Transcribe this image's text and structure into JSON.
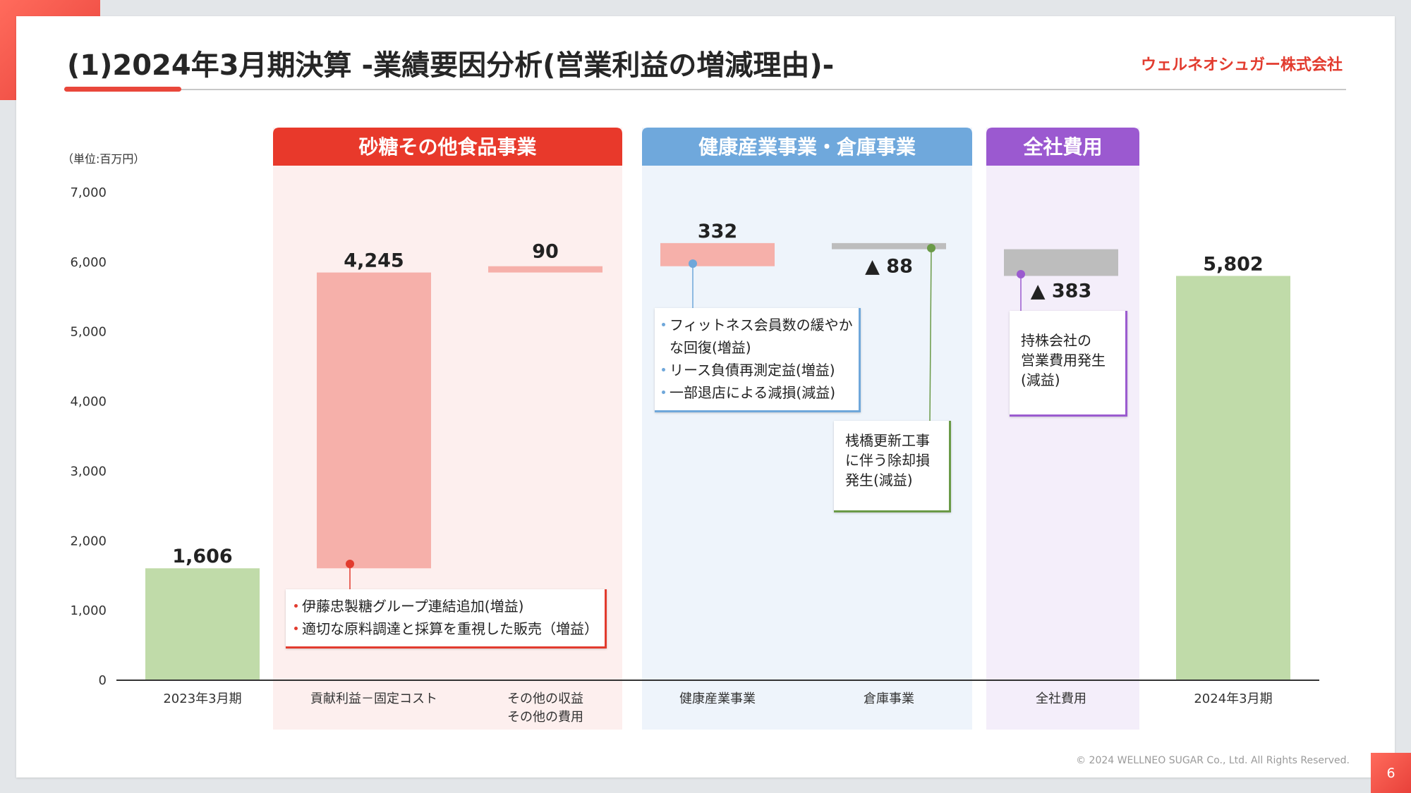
{
  "slide": {
    "title": "(1)2024年3月期決算 -業績要因分析(営業利益の増減理由)-",
    "company": "ウェルネオシュガー株式会社",
    "footer": "© 2024 WELLNEO SUGAR Co., Ltd. All Rights Reserved.",
    "page_number": "6"
  },
  "chart_data": {
    "type": "bar",
    "subtype": "waterfall",
    "unit_label": "（単位:百万円）",
    "ylim": [
      0,
      7000
    ],
    "y_ticks": [
      "7,000",
      "6,000",
      "5,000",
      "4,000",
      "3,000",
      "2,000",
      "1,000",
      "0"
    ],
    "groups": [
      {
        "label": "砂糖その他食品事業",
        "color": "#e8392b",
        "bg": "#fdefee",
        "span": [
          1,
          2
        ]
      },
      {
        "label": "健康産業事業・倉庫事業",
        "color": "#6fa8dc",
        "bg": "#eef4fb",
        "span": [
          3,
          4
        ]
      },
      {
        "label": "全社費用",
        "color": "#9b59d0",
        "bg": "#f4eefa",
        "span": [
          5,
          5
        ]
      }
    ],
    "categories": [
      "2023年3月期",
      "貢献利益－固定コスト",
      "その他の収益\nその他の費用",
      "健康産業事業",
      "倉庫事業",
      "全社費用",
      "2024年3月期"
    ],
    "values": [
      1606,
      4245,
      90,
      332,
      -88,
      -383,
      5802
    ],
    "value_labels": [
      "1,606",
      "4,245",
      "90",
      "332",
      "▲ 88",
      "▲ 383",
      "5,802"
    ],
    "bar_kinds": [
      "total",
      "increase",
      "increase",
      "increase",
      "decrease",
      "decrease",
      "total"
    ],
    "colors": {
      "total": "#c0dba9",
      "increase": "#f6b0aa",
      "decrease": "#bdbdbd"
    },
    "annotations": [
      {
        "target": 1,
        "color": "#e23b2e",
        "lines": [
          "伊藤忠製糖グループ連結追加(増益)",
          "適切な原料調達と採算を重視した販売（増益）"
        ]
      },
      {
        "target": 3,
        "color": "#6fa7da",
        "lines": [
          "フィットネス会員数の緩やか",
          "な回復(増益)",
          "リース負債再測定益(増益)",
          "一部退店による減損(減益)"
        ]
      },
      {
        "target": 4,
        "color": "#6a9a47",
        "lines": [
          "桟橋更新工事",
          "に伴う除却損",
          "発生(減益)"
        ]
      },
      {
        "target": 5,
        "color": "#9b5bcf",
        "lines": [
          "持株会社の",
          "営業費用発生",
          "(減益)"
        ]
      }
    ]
  }
}
